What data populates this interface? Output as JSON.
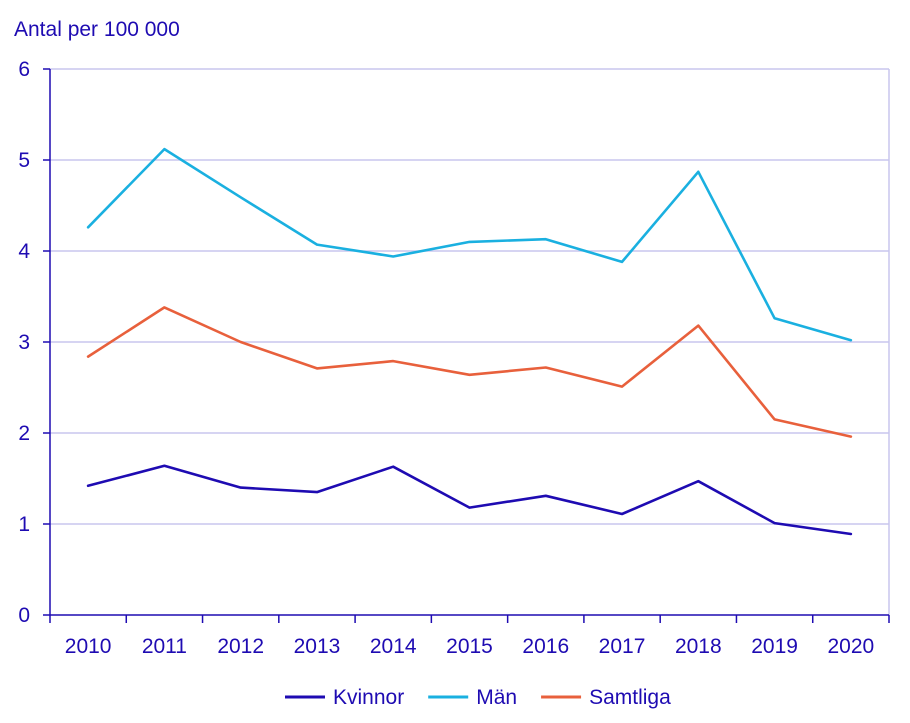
{
  "chart_data": {
    "type": "line",
    "title": "",
    "ylabel": "Antal per 100 000",
    "xlabel": "",
    "ylim": [
      0,
      6
    ],
    "yticks": [
      0,
      1,
      2,
      3,
      4,
      5,
      6
    ],
    "categories": [
      "2010",
      "2011",
      "2012",
      "2013",
      "2014",
      "2015",
      "2016",
      "2017",
      "2018",
      "2019",
      "2020"
    ],
    "grid": true,
    "legend_position": "bottom",
    "series": [
      {
        "name": "Kvinnor",
        "color": "#1e0bb2",
        "values": [
          1.42,
          1.64,
          1.4,
          1.35,
          1.63,
          1.18,
          1.31,
          1.11,
          1.47,
          1.01,
          0.89
        ]
      },
      {
        "name": "Män",
        "color": "#1ab0e0",
        "values": [
          4.26,
          5.12,
          4.59,
          4.07,
          3.94,
          4.1,
          4.13,
          3.88,
          4.87,
          3.26,
          3.02
        ]
      },
      {
        "name": "Samtliga",
        "color": "#e8603c",
        "values": [
          2.84,
          3.38,
          3.0,
          2.71,
          2.79,
          2.64,
          2.72,
          2.51,
          3.18,
          2.15,
          1.96
        ]
      }
    ],
    "colors": {
      "axis": "#1e0bb2",
      "grid": "#c8c6ee",
      "text": "#1e0bb2"
    }
  }
}
